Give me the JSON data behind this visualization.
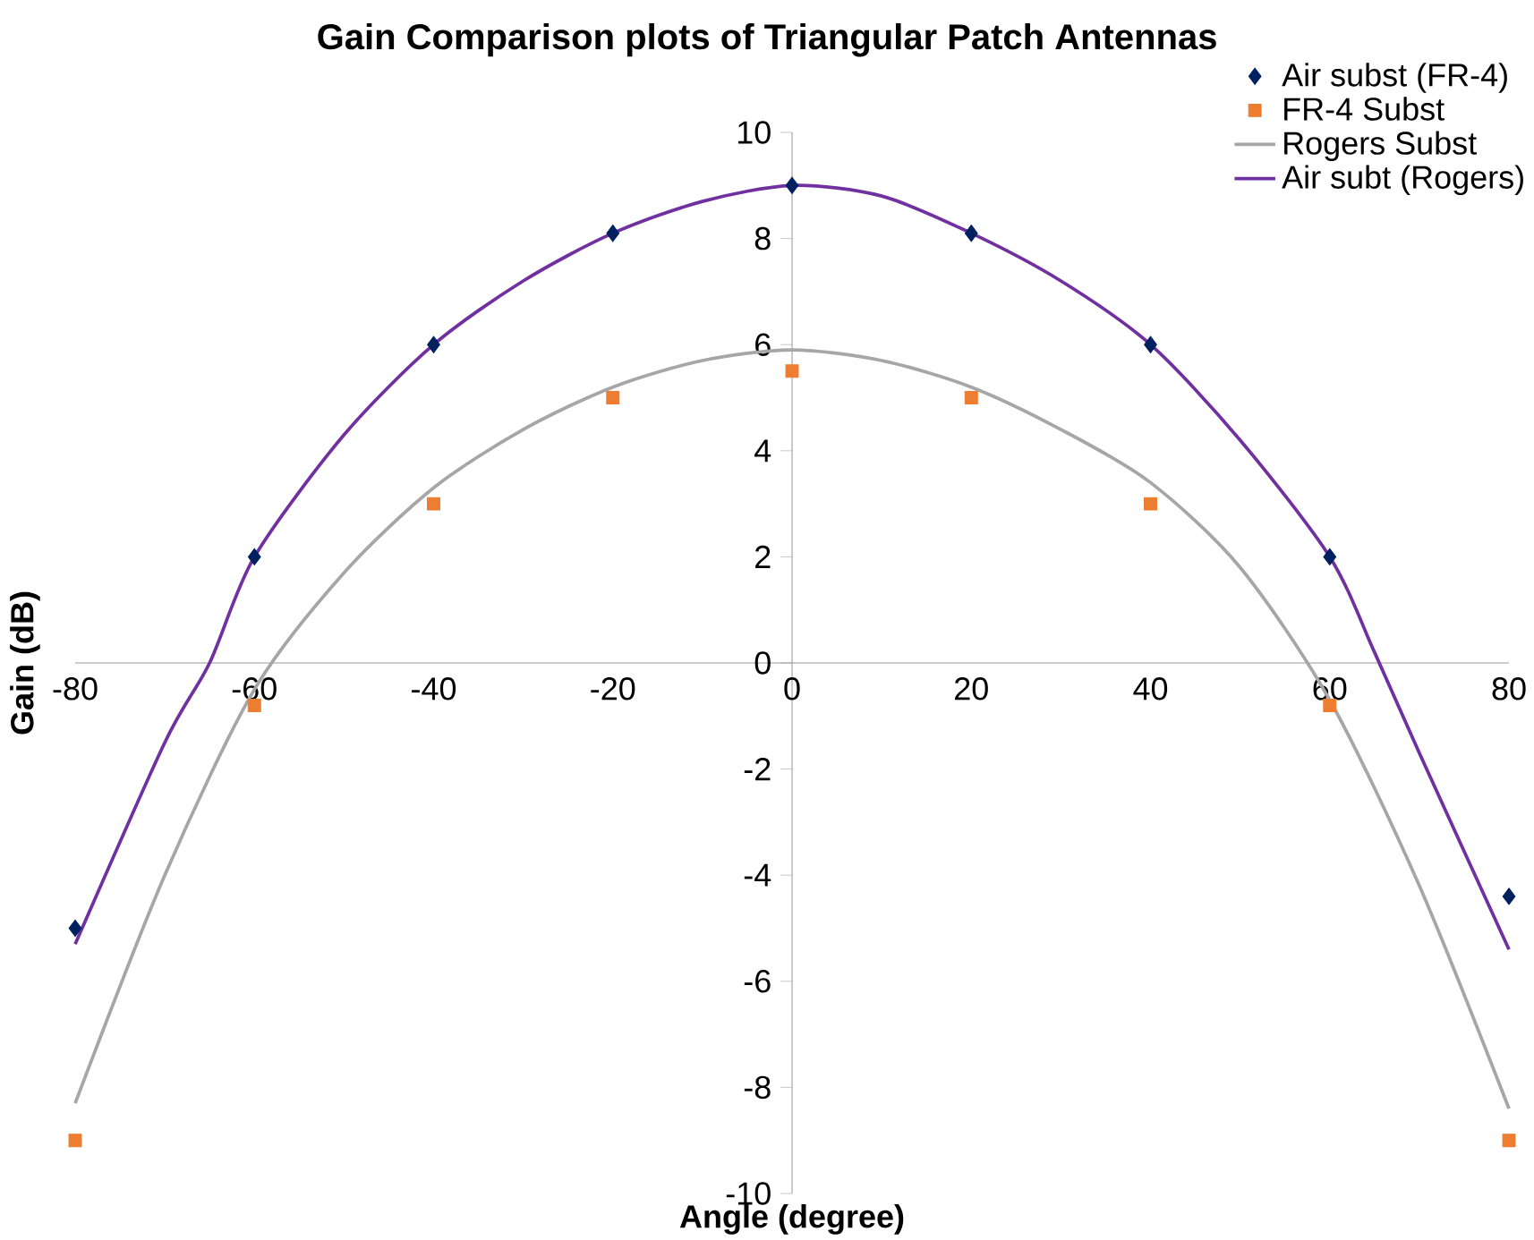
{
  "chart_data": {
    "type": "line",
    "title": "Gain Comparison  plots of Triangular Patch Antennas",
    "xlabel": "Angle (degree)",
    "ylabel": "Gain (dB)",
    "xlim": [
      -80,
      80
    ],
    "ylim": [
      -10,
      10
    ],
    "xticks": [
      -80,
      -60,
      -40,
      -20,
      0,
      20,
      40,
      60,
      80
    ],
    "yticks": [
      -10,
      -8,
      -6,
      -4,
      -2,
      0,
      2,
      4,
      6,
      8,
      10
    ],
    "legend": "top right",
    "grid": false,
    "series": [
      {
        "name": "Air subst (FR-4)",
        "type": "scatter",
        "marker": "diamond",
        "color": "#002060",
        "x": [
          -80,
          -60,
          -40,
          -20,
          0,
          20,
          40,
          60,
          80
        ],
        "values": [
          -5,
          2,
          6,
          8.1,
          9,
          8.1,
          6,
          2,
          -4.4
        ]
      },
      {
        "name": "FR-4 Subst",
        "type": "scatter",
        "marker": "square",
        "color": "#ed7d31",
        "x": [
          -80,
          -60,
          -40,
          -20,
          0,
          20,
          40,
          60,
          80
        ],
        "values": [
          -9,
          -0.8,
          3,
          5,
          5.5,
          5,
          3,
          -0.8,
          -9
        ]
      },
      {
        "name": "Rogers Subst",
        "type": "line",
        "marker": "none",
        "line_style": "solid",
        "color": "#a6a6a6",
        "x": [
          -80,
          -70,
          -60,
          -50,
          -40,
          -30,
          -20,
          -10,
          0,
          10,
          20,
          30,
          40,
          50,
          60,
          70,
          80
        ],
        "values": [
          -8.3,
          -4.0,
          -0.5,
          1.7,
          3.3,
          4.4,
          5.2,
          5.7,
          5.9,
          5.7,
          5.2,
          4.4,
          3.4,
          1.8,
          -0.7,
          -4.2,
          -8.4
        ]
      },
      {
        "name": "Air subt (Rogers)",
        "type": "line",
        "marker": "none",
        "line_style": "solid",
        "color": "#7030a0",
        "x": [
          -80,
          -70,
          -65,
          -60,
          -50,
          -40,
          -30,
          -20,
          -10,
          0,
          10,
          20,
          30,
          40,
          50,
          60,
          65,
          70,
          80
        ],
        "values": [
          -5.3,
          -1.5,
          0,
          2,
          4.3,
          6,
          7.2,
          8.1,
          8.7,
          9,
          8.8,
          8.1,
          7.2,
          6,
          4.2,
          2,
          0.2,
          -1.7,
          -5.4
        ]
      }
    ]
  }
}
